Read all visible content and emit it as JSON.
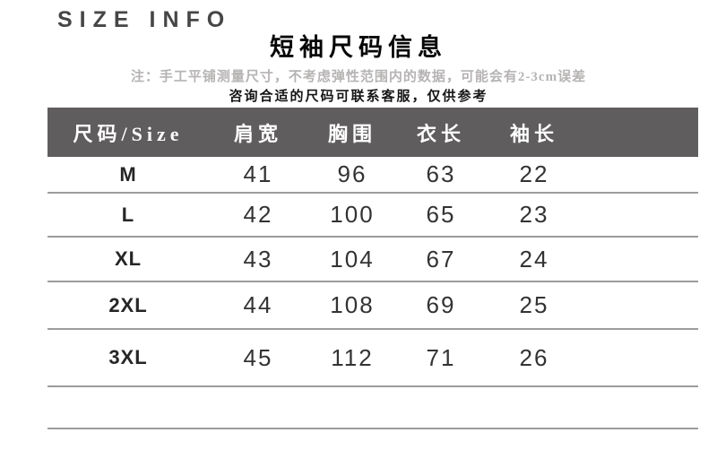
{
  "page": {
    "brand_heading": "SIZE INFO",
    "title": "短袖尺码信息",
    "note_line1": "注：手工平铺测量尺寸，不考虑弹性范围内的数据，可能会有2-3cm误差",
    "note_line2": "咨询合适的尺码可联系客服，仅供参考"
  },
  "colors": {
    "header_bg": "#5f5d5d",
    "header_text": "#ffffff",
    "divider_line": "#9d9b9b",
    "note_gray": "#b6b3b3",
    "body_text": "#333333"
  },
  "table": {
    "columns": [
      "尺码/Size",
      "肩宽",
      "胸围",
      "衣长",
      "袖长"
    ],
    "rows": [
      {
        "size": "M",
        "values": [
          "41",
          "96",
          "63",
          "22"
        ]
      },
      {
        "size": "L",
        "values": [
          "42",
          "100",
          "65",
          "23"
        ]
      },
      {
        "size": "XL",
        "values": [
          "43",
          "104",
          "67",
          "24"
        ]
      },
      {
        "size": "2XL",
        "values": [
          "44",
          "108",
          "69",
          "25"
        ]
      },
      {
        "size": "3XL",
        "values": [
          "45",
          "112",
          "71",
          "26"
        ]
      }
    ]
  }
}
